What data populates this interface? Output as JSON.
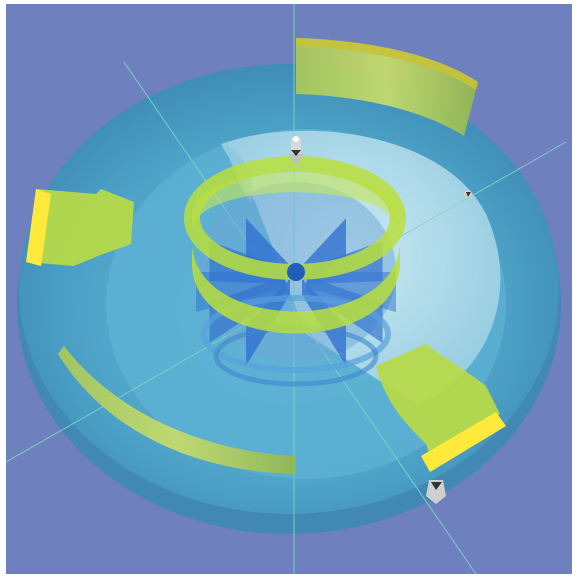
{
  "scene": {
    "background_color": "#6e80bd",
    "outer_ring_color": "#4ea3c8",
    "inner_dome_color": "#bfe3ee",
    "vane_color": "#2f6fd0",
    "baffle_color": "#b6d94a",
    "baffle_edge_color": "#ffe93a",
    "axis_color": "#7fd6c4",
    "sensor_color": "#d8d8d8"
  }
}
